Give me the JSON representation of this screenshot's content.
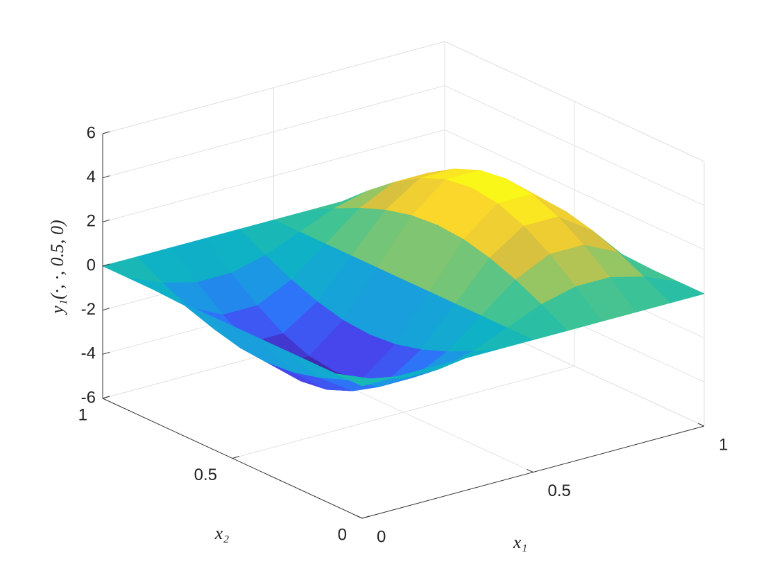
{
  "chart_data": {
    "type": "surface",
    "xlabel": "x₁",
    "ylabel": "x₂",
    "zlabel": "y₁(·, ·, 0.5, 0)",
    "x": [
      0,
      0.1,
      0.2,
      0.3,
      0.4,
      0.5,
      0.6,
      0.7,
      0.8,
      0.9,
      1
    ],
    "y": [
      0,
      0.1,
      0.2,
      0.3,
      0.4,
      0.5,
      0.6,
      0.7,
      0.8,
      0.9,
      1
    ],
    "z": [
      [
        0,
        0,
        0,
        0,
        0,
        0,
        0,
        0,
        0,
        0,
        0
      ],
      [
        0,
        -0.64,
        -1.03,
        -1.03,
        -0.64,
        0,
        0.64,
        1.03,
        1.03,
        0.64,
        0
      ],
      [
        0,
        -1.21,
        -1.96,
        -1.96,
        -1.21,
        0,
        1.21,
        1.96,
        1.96,
        1.21,
        0
      ],
      [
        0,
        -1.66,
        -2.69,
        -2.69,
        -1.66,
        0,
        1.66,
        2.69,
        2.69,
        1.66,
        0
      ],
      [
        0,
        -1.96,
        -3.17,
        -3.17,
        -1.96,
        0,
        1.96,
        3.17,
        3.17,
        1.96,
        0
      ],
      [
        0,
        -2.06,
        -3.33,
        -3.33,
        -2.06,
        0,
        2.06,
        3.33,
        3.33,
        2.06,
        0
      ],
      [
        0,
        -1.96,
        -3.17,
        -3.17,
        -1.96,
        0,
        1.96,
        3.17,
        3.17,
        1.96,
        0
      ],
      [
        0,
        -1.66,
        -2.69,
        -2.69,
        -1.66,
        0,
        1.66,
        2.69,
        2.69,
        1.66,
        0
      ],
      [
        0,
        -1.21,
        -1.96,
        -1.96,
        -1.21,
        0,
        1.21,
        1.96,
        1.96,
        1.21,
        0
      ],
      [
        0,
        -0.64,
        -1.03,
        -1.03,
        -0.64,
        0,
        0.64,
        1.03,
        1.03,
        0.64,
        0
      ],
      [
        0,
        0,
        0,
        0,
        0,
        0,
        0,
        0,
        0,
        0,
        0
      ]
    ],
    "xlim": [
      0,
      1
    ],
    "ylim": [
      0,
      1
    ],
    "zlim": [
      -6,
      6
    ],
    "xticks": [
      0,
      0.5,
      1
    ],
    "yticks": [
      0,
      0.5,
      1
    ],
    "zticks": [
      -6,
      -4,
      -2,
      0,
      2,
      4,
      6
    ],
    "grid": true,
    "colormap": [
      "#3e26a8",
      "#4648f0",
      "#2c76f8",
      "#1a9ce0",
      "#0db4c2",
      "#36c29a",
      "#8cc66a",
      "#d6c040",
      "#fbd52c",
      "#f9fb14"
    ]
  }
}
